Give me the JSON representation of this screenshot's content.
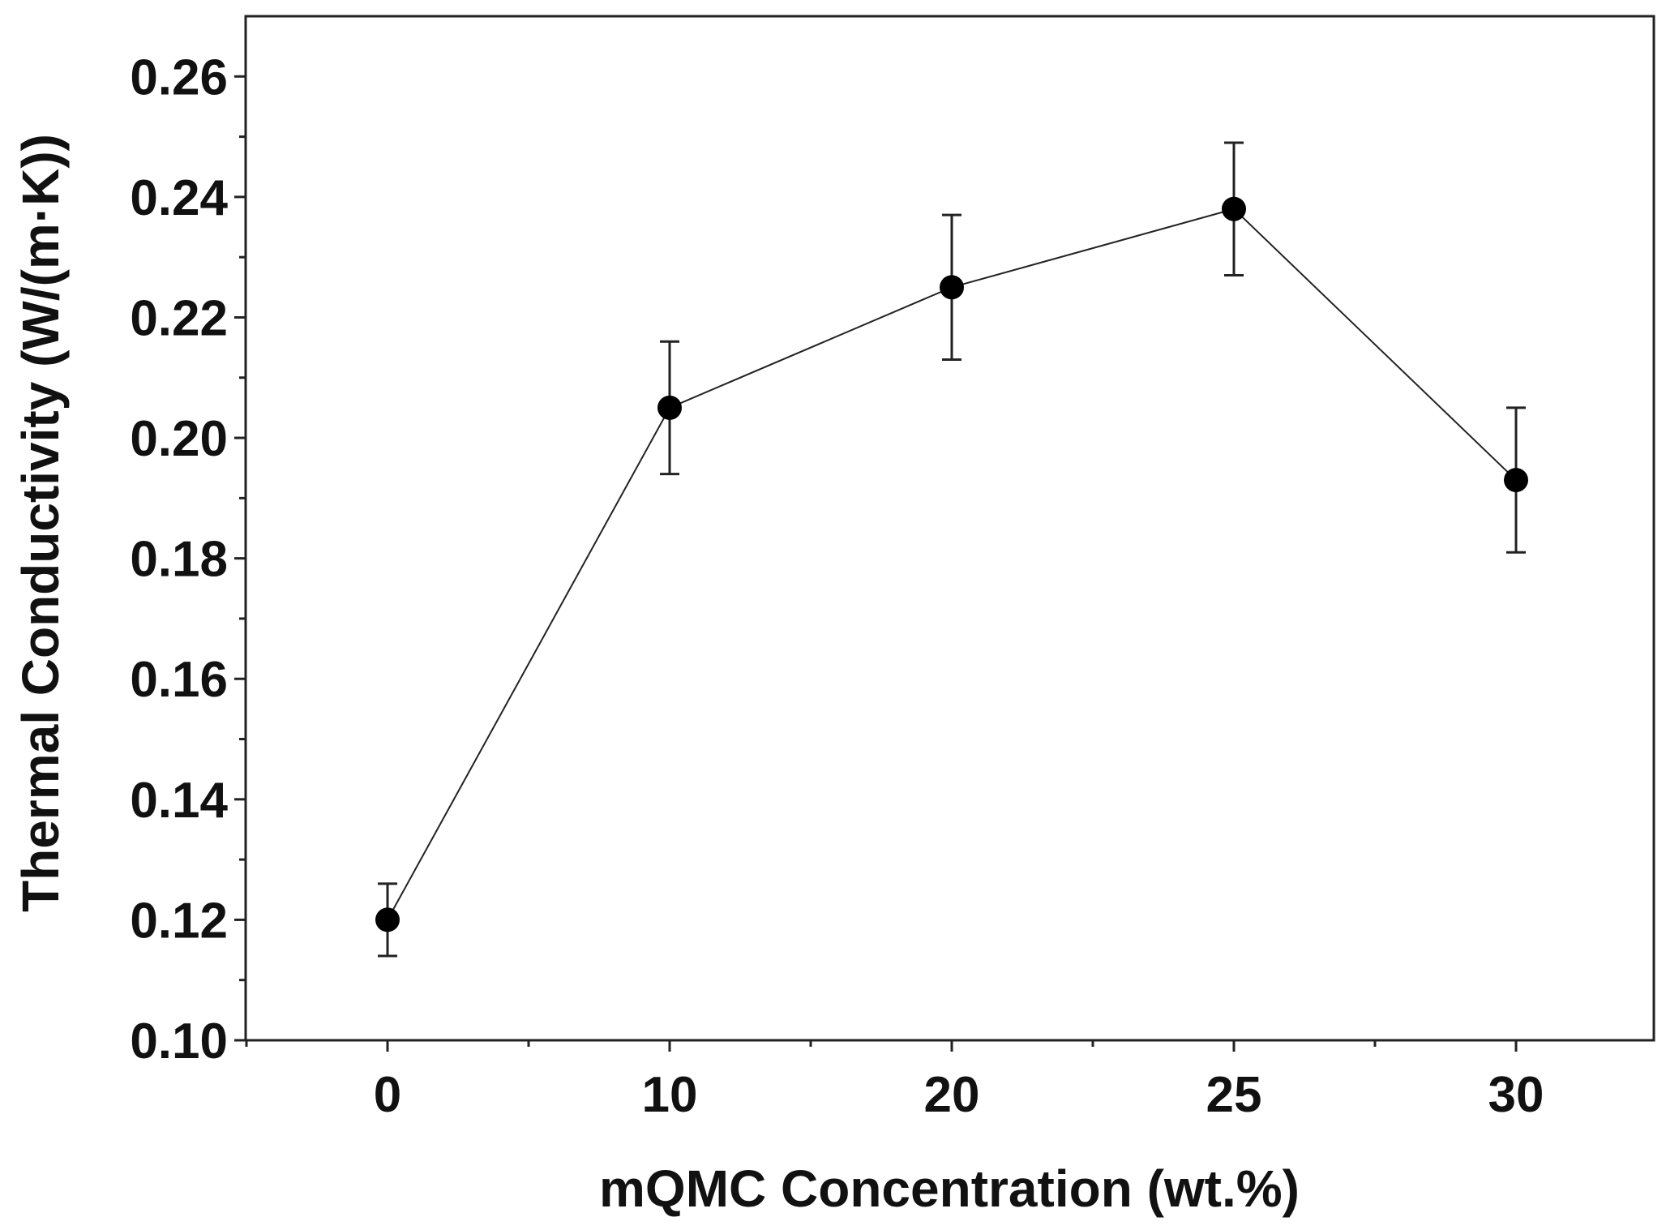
{
  "chart_data": {
    "type": "line",
    "title": "",
    "xlabel": "mQMC Concentration (wt.%)",
    "ylabel": "Thermal Conductivity (W/(m·K))",
    "categories": [
      "0",
      "10",
      "20",
      "25",
      "30"
    ],
    "series": [
      {
        "name": "Thermal Conductivity",
        "values": [
          0.12,
          0.205,
          0.225,
          0.238,
          0.193
        ],
        "errors": [
          0.006,
          0.011,
          0.012,
          0.011,
          0.012
        ]
      }
    ],
    "ylim": [
      0.1,
      0.27
    ],
    "yticks": [
      "0.10",
      "0.12",
      "0.14",
      "0.16",
      "0.18",
      "0.20",
      "0.22",
      "0.24",
      "0.26"
    ],
    "grid": false,
    "legend": "none",
    "colors": {
      "line": "#222222",
      "marker": "#000000",
      "axis": "#222222",
      "text": "#111111"
    }
  }
}
